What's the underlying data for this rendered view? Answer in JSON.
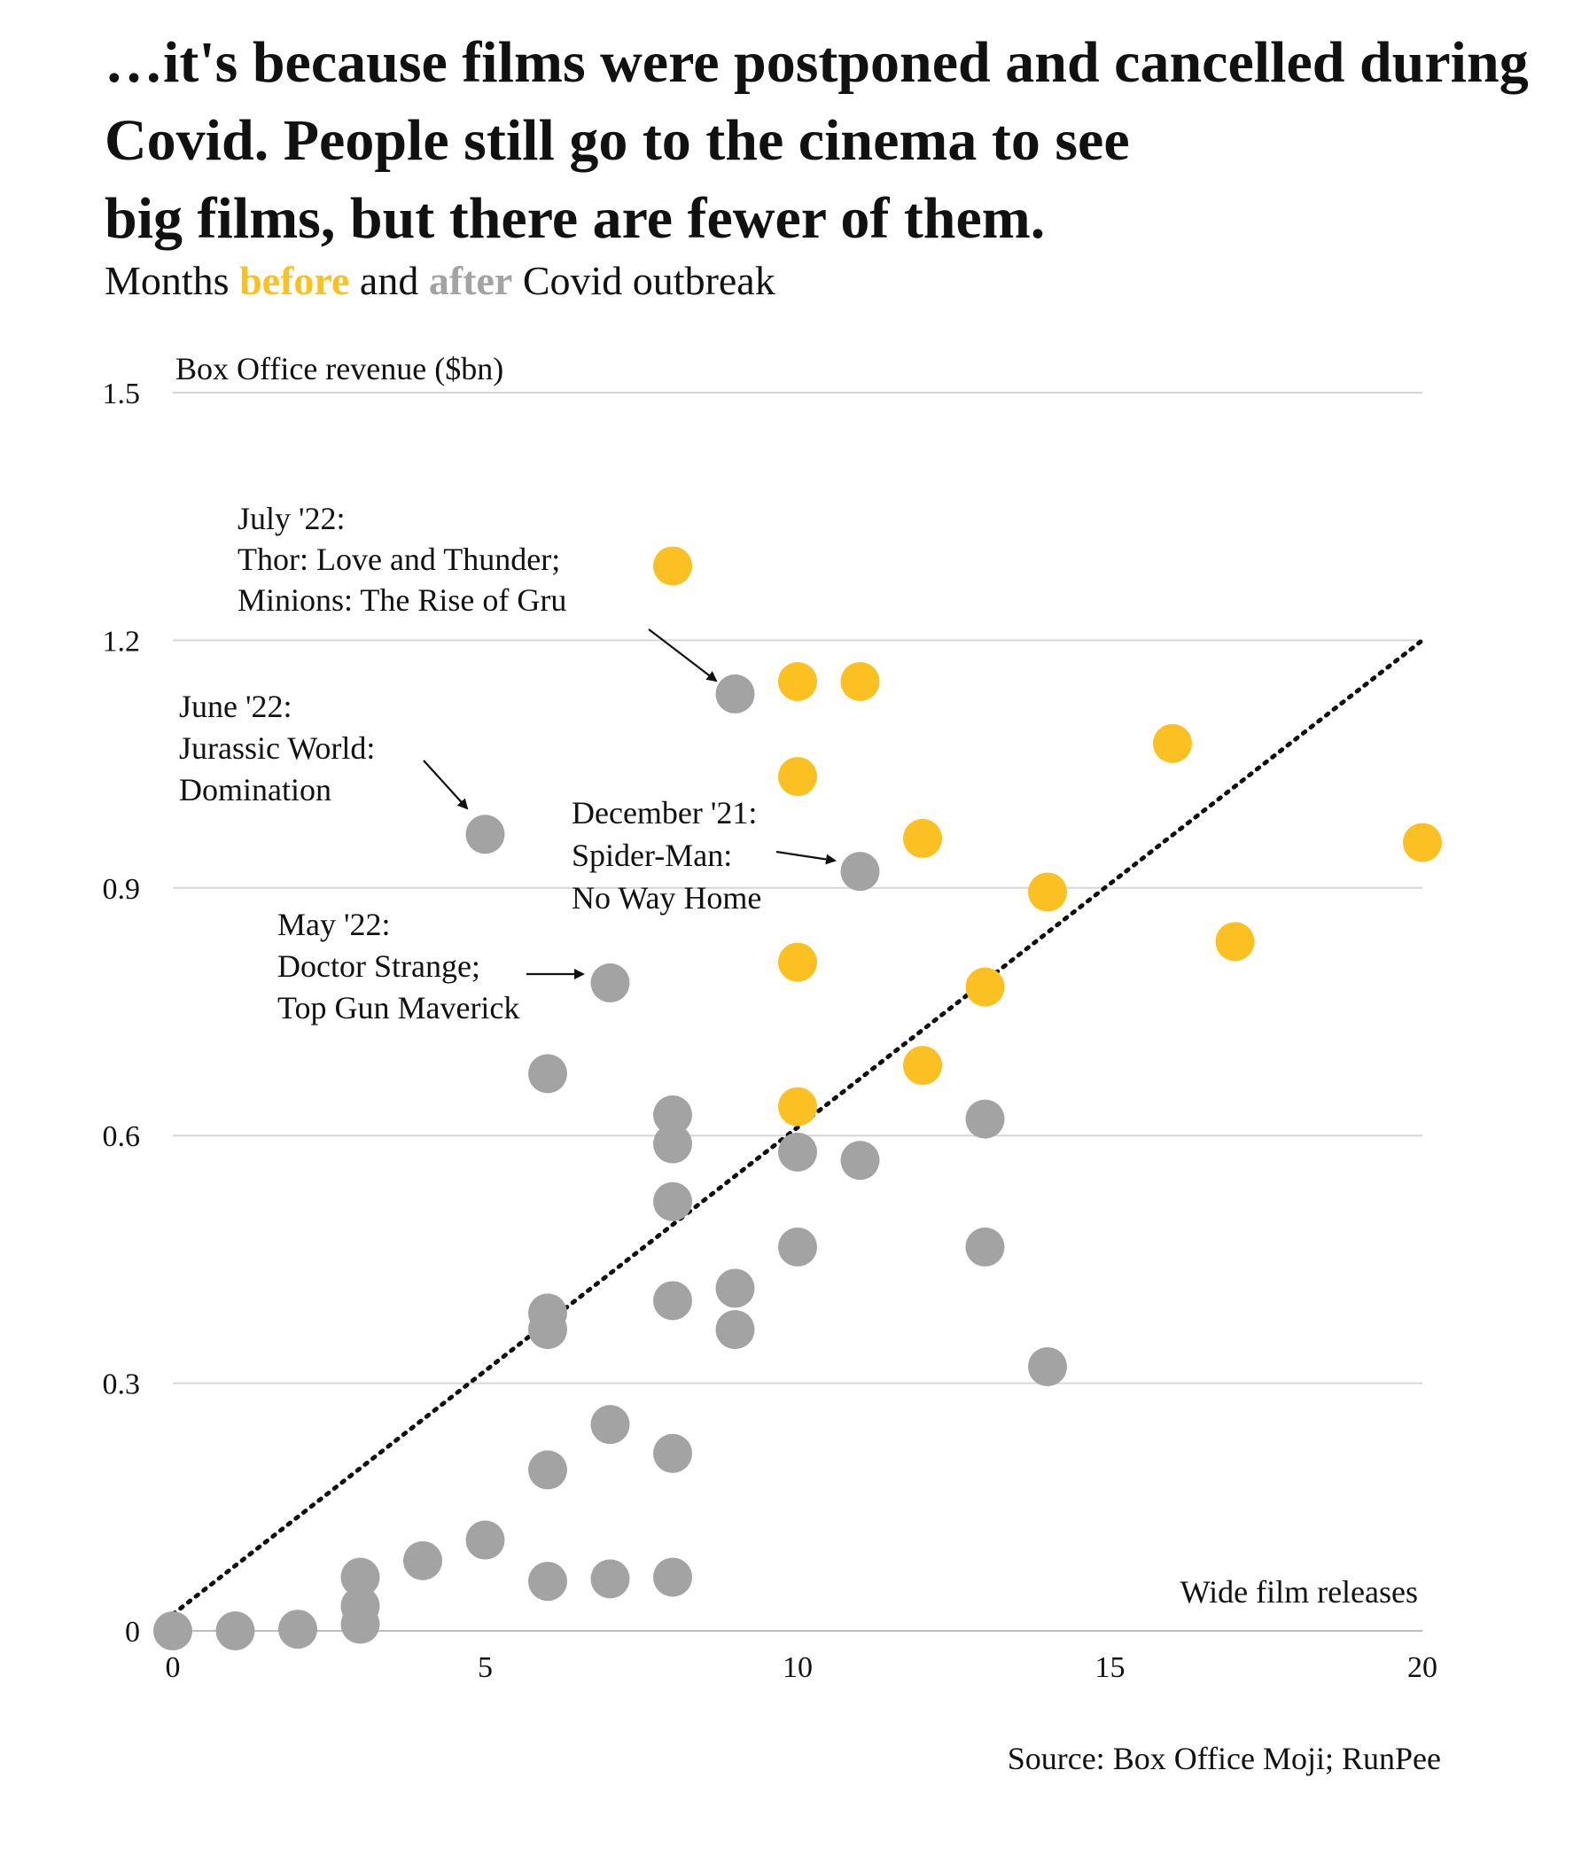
{
  "chart_data": {
    "type": "scatter",
    "title": "…it's because films were postponed and cancelled during Covid. People still go to the cinema to see big films, but there are fewer of them.",
    "subtitle": {
      "prefix": "Months ",
      "before_label": "before",
      "middle": " and ",
      "after_label": "after",
      "suffix": " Covid outbreak"
    },
    "ylabel": "Box Office revenue ($bn)",
    "xlabel": "Wide film releases",
    "xlim": [
      0,
      20
    ],
    "ylim": [
      0,
      1.5
    ],
    "x_ticks": [
      "0",
      "5",
      "10",
      "15",
      "20"
    ],
    "y_ticks": [
      "0",
      "0.3",
      "0.6",
      "0.9",
      "1.2",
      "1.5"
    ],
    "grid": true,
    "colors": {
      "before": "#fbc123",
      "after": "#a3a3a3",
      "trend": "#111111"
    },
    "trendline": {
      "x": [
        0,
        20
      ],
      "y": [
        0.02,
        1.2
      ],
      "style": "dotted"
    },
    "series": [
      {
        "key": "before",
        "points": [
          {
            "x": 8,
            "y": 1.29
          },
          {
            "x": 10,
            "y": 1.15
          },
          {
            "x": 11,
            "y": 1.15
          },
          {
            "x": 10,
            "y": 1.035
          },
          {
            "x": 16,
            "y": 1.075
          },
          {
            "x": 12,
            "y": 0.96
          },
          {
            "x": 20,
            "y": 0.955
          },
          {
            "x": 14,
            "y": 0.895
          },
          {
            "x": 10,
            "y": 0.81
          },
          {
            "x": 13,
            "y": 0.78
          },
          {
            "x": 17,
            "y": 0.835
          },
          {
            "x": 12,
            "y": 0.685
          },
          {
            "x": 10,
            "y": 0.635
          }
        ]
      },
      {
        "key": "after",
        "points": [
          {
            "x": 9,
            "y": 1.135
          },
          {
            "x": 5,
            "y": 0.965
          },
          {
            "x": 11,
            "y": 0.92
          },
          {
            "x": 7,
            "y": 0.785
          },
          {
            "x": 6,
            "y": 0.675
          },
          {
            "x": 8,
            "y": 0.625
          },
          {
            "x": 8,
            "y": 0.59
          },
          {
            "x": 13,
            "y": 0.62
          },
          {
            "x": 10,
            "y": 0.58
          },
          {
            "x": 11,
            "y": 0.57
          },
          {
            "x": 8,
            "y": 0.52
          },
          {
            "x": 10,
            "y": 0.465
          },
          {
            "x": 13,
            "y": 0.465
          },
          {
            "x": 9,
            "y": 0.415
          },
          {
            "x": 8,
            "y": 0.4
          },
          {
            "x": 6,
            "y": 0.385
          },
          {
            "x": 6,
            "y": 0.365
          },
          {
            "x": 9,
            "y": 0.365
          },
          {
            "x": 14,
            "y": 0.32
          },
          {
            "x": 7,
            "y": 0.25
          },
          {
            "x": 8,
            "y": 0.215
          },
          {
            "x": 6,
            "y": 0.195
          },
          {
            "x": 5,
            "y": 0.11
          },
          {
            "x": 4,
            "y": 0.085
          },
          {
            "x": 3,
            "y": 0.065
          },
          {
            "x": 8,
            "y": 0.065
          },
          {
            "x": 7,
            "y": 0.063
          },
          {
            "x": 6,
            "y": 0.06
          },
          {
            "x": 3,
            "y": 0.03
          },
          {
            "x": 3,
            "y": 0.008
          },
          {
            "x": 2,
            "y": 0.002
          },
          {
            "x": 1,
            "y": 0.0
          },
          {
            "x": 0,
            "y": 0.0
          }
        ]
      }
    ],
    "annotations": [
      {
        "lines": [
          "July '22:",
          "Thor: Love and Thunder;",
          "Minions: The Rise of Gru"
        ],
        "target": {
          "x": 9,
          "y": 1.135
        }
      },
      {
        "lines": [
          "June '22:",
          "Jurassic World:",
          "Domination"
        ],
        "target": {
          "x": 5,
          "y": 0.965
        }
      },
      {
        "lines": [
          "December '21:",
          "Spider-Man:",
          "No Way Home"
        ],
        "target": {
          "x": 11,
          "y": 0.92
        }
      },
      {
        "lines": [
          "May '22:",
          "Doctor Strange;",
          "Top Gun Maverick"
        ],
        "target": {
          "x": 7,
          "y": 0.785
        }
      }
    ],
    "source": "Source: Box Office Moji; RunPee"
  }
}
